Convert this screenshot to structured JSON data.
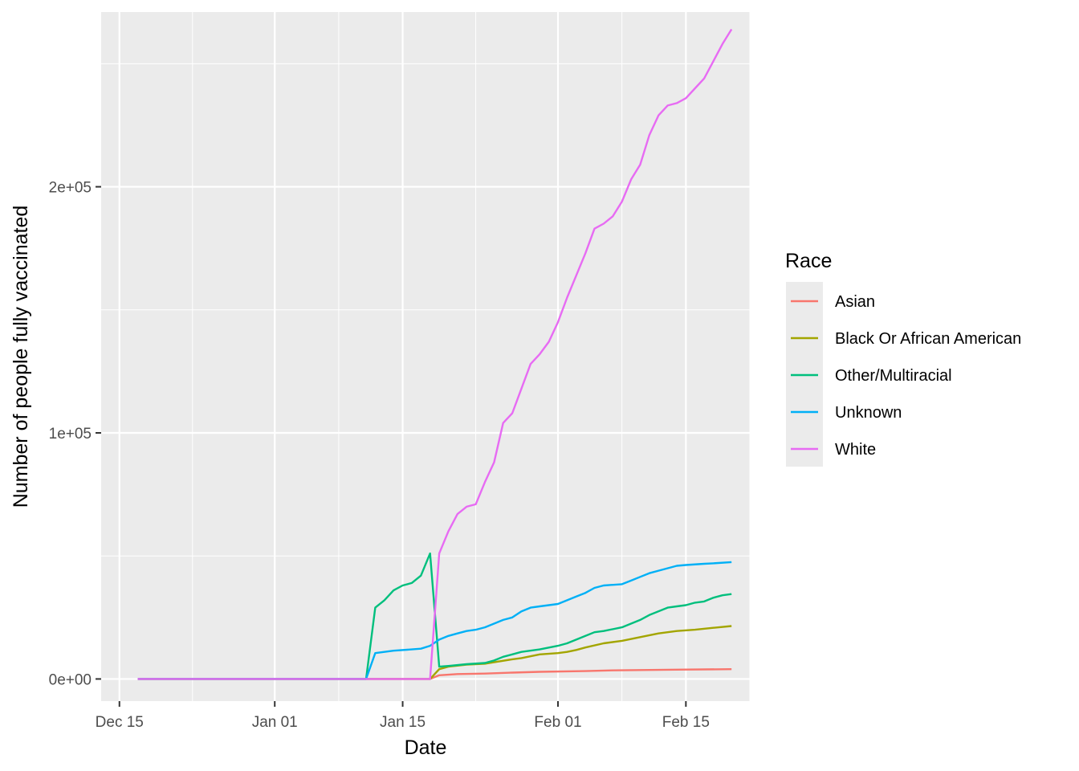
{
  "chart_data": {
    "type": "line",
    "xlabel": "Date",
    "ylabel": "Number of people fully vaccinated",
    "x_axis": {
      "type": "date",
      "range": [
        "2020-12-13",
        "2021-02-22"
      ],
      "ticks": [
        {
          "date": "2020-12-15",
          "label": "Dec 15"
        },
        {
          "date": "2021-01-01",
          "label": "Jan 01"
        },
        {
          "date": "2021-01-15",
          "label": "Jan 15"
        },
        {
          "date": "2021-02-01",
          "label": "Feb 01"
        },
        {
          "date": "2021-02-15",
          "label": "Feb 15"
        }
      ],
      "minor_ticks": [
        "2020-12-23",
        "2021-01-08",
        "2021-01-23",
        "2021-02-08",
        "2021-02-22"
      ]
    },
    "y_axis": {
      "range": [
        -9000,
        271000
      ],
      "ticks": [
        {
          "value": 0,
          "label": "0e+00"
        },
        {
          "value": 100000,
          "label": "1e+05"
        },
        {
          "value": 200000,
          "label": "2e+05"
        }
      ],
      "minor_ticks": [
        50000,
        150000,
        250000
      ]
    },
    "grid": true,
    "panel_background": "#ebebeb",
    "legend": {
      "title": "Race",
      "placement": "right"
    },
    "series": [
      {
        "name": "Asian",
        "color": "#F8766D",
        "points": [
          [
            "2020-12-17",
            0
          ],
          [
            "2021-01-18",
            0
          ],
          [
            "2021-01-19",
            1500
          ],
          [
            "2021-01-21",
            2000
          ],
          [
            "2021-01-24",
            2200
          ],
          [
            "2021-01-27",
            2600
          ],
          [
            "2021-01-30",
            2900
          ],
          [
            "2021-02-04",
            3200
          ],
          [
            "2021-02-07",
            3500
          ],
          [
            "2021-02-14",
            3800
          ],
          [
            "2021-02-20",
            4000
          ]
        ]
      },
      {
        "name": "Black Or African American",
        "color": "#A3A500",
        "points": [
          [
            "2020-12-17",
            0
          ],
          [
            "2021-01-18",
            0
          ],
          [
            "2021-01-19",
            4000
          ],
          [
            "2021-01-20",
            5000
          ],
          [
            "2021-01-22",
            5800
          ],
          [
            "2021-01-24",
            6200
          ],
          [
            "2021-01-25",
            6800
          ],
          [
            "2021-01-27",
            8000
          ],
          [
            "2021-01-28",
            8500
          ],
          [
            "2021-01-30",
            10000
          ],
          [
            "2021-02-01",
            10500
          ],
          [
            "2021-02-02",
            11000
          ],
          [
            "2021-02-03",
            11800
          ],
          [
            "2021-02-04",
            12800
          ],
          [
            "2021-02-06",
            14500
          ],
          [
            "2021-02-08",
            15500
          ],
          [
            "2021-02-10",
            17000
          ],
          [
            "2021-02-12",
            18500
          ],
          [
            "2021-02-14",
            19500
          ],
          [
            "2021-02-16",
            20000
          ],
          [
            "2021-02-18",
            20800
          ],
          [
            "2021-02-20",
            21500
          ]
        ]
      },
      {
        "name": "Other/Multiracial",
        "color": "#00BF7D",
        "points": [
          [
            "2020-12-17",
            0
          ],
          [
            "2021-01-11",
            0
          ],
          [
            "2021-01-12",
            29000
          ],
          [
            "2021-01-13",
            32000
          ],
          [
            "2021-01-14",
            36000
          ],
          [
            "2021-01-15",
            38000
          ],
          [
            "2021-01-16",
            39000
          ],
          [
            "2021-01-17",
            42000
          ],
          [
            "2021-01-18",
            51000
          ],
          [
            "2021-01-19",
            5000
          ],
          [
            "2021-01-20",
            5300
          ],
          [
            "2021-01-22",
            6000
          ],
          [
            "2021-01-24",
            6500
          ],
          [
            "2021-01-25",
            7500
          ],
          [
            "2021-01-26",
            9000
          ],
          [
            "2021-01-27",
            10000
          ],
          [
            "2021-01-28",
            11000
          ],
          [
            "2021-01-30",
            12000
          ],
          [
            "2021-02-01",
            13500
          ],
          [
            "2021-02-02",
            14500
          ],
          [
            "2021-02-03",
            16000
          ],
          [
            "2021-02-04",
            17500
          ],
          [
            "2021-02-05",
            19000
          ],
          [
            "2021-02-06",
            19500
          ],
          [
            "2021-02-08",
            21000
          ],
          [
            "2021-02-10",
            24000
          ],
          [
            "2021-02-11",
            26000
          ],
          [
            "2021-02-13",
            29000
          ],
          [
            "2021-02-14",
            29500
          ],
          [
            "2021-02-15",
            30000
          ],
          [
            "2021-02-16",
            31000
          ],
          [
            "2021-02-17",
            31500
          ],
          [
            "2021-02-18",
            33000
          ],
          [
            "2021-02-19",
            34000
          ],
          [
            "2021-02-20",
            34500
          ]
        ]
      },
      {
        "name": "Unknown",
        "color": "#00B0F6",
        "points": [
          [
            "2020-12-17",
            0
          ],
          [
            "2021-01-11",
            0
          ],
          [
            "2021-01-12",
            10500
          ],
          [
            "2021-01-13",
            11000
          ],
          [
            "2021-01-14",
            11500
          ],
          [
            "2021-01-16",
            12000
          ],
          [
            "2021-01-17",
            12300
          ],
          [
            "2021-01-18",
            13500
          ],
          [
            "2021-01-19",
            16000
          ],
          [
            "2021-01-20",
            17500
          ],
          [
            "2021-01-21",
            18500
          ],
          [
            "2021-01-22",
            19500
          ],
          [
            "2021-01-23",
            20000
          ],
          [
            "2021-01-24",
            21000
          ],
          [
            "2021-01-25",
            22500
          ],
          [
            "2021-01-26",
            24000
          ],
          [
            "2021-01-27",
            25000
          ],
          [
            "2021-01-28",
            27500
          ],
          [
            "2021-01-29",
            29000
          ],
          [
            "2021-01-30",
            29500
          ],
          [
            "2021-02-01",
            30500
          ],
          [
            "2021-02-02",
            32000
          ],
          [
            "2021-02-03",
            33500
          ],
          [
            "2021-02-04",
            35000
          ],
          [
            "2021-02-05",
            37000
          ],
          [
            "2021-02-06",
            38000
          ],
          [
            "2021-02-08",
            38500
          ],
          [
            "2021-02-09",
            40000
          ],
          [
            "2021-02-10",
            41500
          ],
          [
            "2021-02-11",
            43000
          ],
          [
            "2021-02-12",
            44000
          ],
          [
            "2021-02-14",
            46000
          ],
          [
            "2021-02-15",
            46300
          ],
          [
            "2021-02-17",
            46800
          ],
          [
            "2021-02-18",
            47000
          ],
          [
            "2021-02-20",
            47500
          ]
        ]
      },
      {
        "name": "White",
        "color": "#E76BF3",
        "points": [
          [
            "2020-12-17",
            0
          ],
          [
            "2021-01-18",
            0
          ],
          [
            "2021-01-19",
            51000
          ],
          [
            "2021-01-20",
            60000
          ],
          [
            "2021-01-21",
            67000
          ],
          [
            "2021-01-22",
            70000
          ],
          [
            "2021-01-23",
            71000
          ],
          [
            "2021-01-24",
            80000
          ],
          [
            "2021-01-25",
            88000
          ],
          [
            "2021-01-26",
            104000
          ],
          [
            "2021-01-27",
            108000
          ],
          [
            "2021-01-28",
            118000
          ],
          [
            "2021-01-29",
            128000
          ],
          [
            "2021-01-30",
            132000
          ],
          [
            "2021-01-31",
            137000
          ],
          [
            "2021-02-01",
            145000
          ],
          [
            "2021-02-02",
            155000
          ],
          [
            "2021-02-03",
            164000
          ],
          [
            "2021-02-04",
            173000
          ],
          [
            "2021-02-05",
            183000
          ],
          [
            "2021-02-06",
            185000
          ],
          [
            "2021-02-07",
            188000
          ],
          [
            "2021-02-08",
            194000
          ],
          [
            "2021-02-09",
            203000
          ],
          [
            "2021-02-10",
            209000
          ],
          [
            "2021-02-11",
            221000
          ],
          [
            "2021-02-12",
            229000
          ],
          [
            "2021-02-13",
            233000
          ],
          [
            "2021-02-14",
            234000
          ],
          [
            "2021-02-15",
            236000
          ],
          [
            "2021-02-16",
            240000
          ],
          [
            "2021-02-17",
            244000
          ],
          [
            "2021-02-18",
            251000
          ],
          [
            "2021-02-19",
            258000
          ],
          [
            "2021-02-20",
            264000
          ]
        ]
      }
    ]
  }
}
